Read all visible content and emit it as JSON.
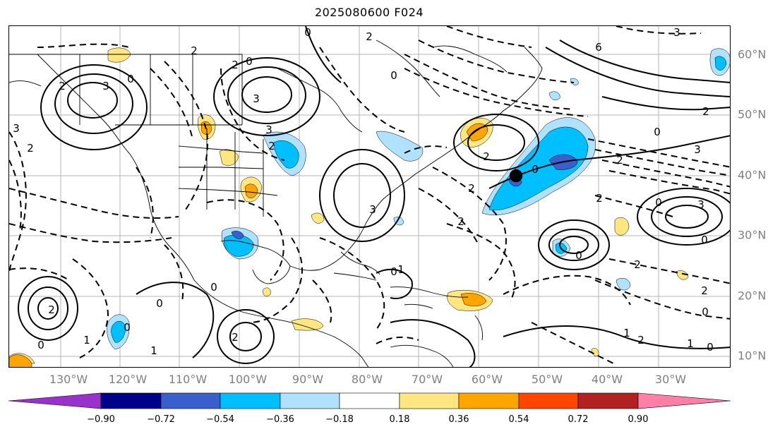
{
  "title": "2025080600 F024",
  "lat_labels": [
    "60°N",
    "50°N",
    "40°N",
    "30°N",
    "20°N",
    "10°N"
  ],
  "lon_labels": [
    "130°W",
    "120°W",
    "110°W",
    "100°W",
    "90°W",
    "80°W",
    "70°W",
    "60°W",
    "50°W",
    "40°W",
    "30°W"
  ],
  "colorbar": {
    "ticks": [
      "−0.90",
      "−0.72",
      "−0.54",
      "−0.36",
      "−0.18",
      "0.18",
      "0.36",
      "0.54",
      "0.72",
      "0.90"
    ],
    "colors": [
      "#9932cc",
      "#00008b",
      "#3a5fcd",
      "#00bfff",
      "#b0e2ff",
      "#ffffff",
      "#ffe680",
      "#ffa500",
      "#ff4500",
      "#b22222",
      "#ff7fa8"
    ]
  },
  "contour_labels": [
    "3",
    "2",
    "0",
    "2",
    "3",
    "3",
    "3",
    "2",
    "2",
    "2",
    "0",
    "0",
    "2",
    "0",
    "3",
    "6",
    "3",
    "2",
    "0",
    "3",
    "2",
    "0",
    "2",
    "2",
    "3",
    "2",
    "2",
    "0",
    "0",
    "0",
    "2",
    "2",
    "1",
    "2",
    "0",
    "1",
    "0",
    "2",
    "0",
    "2",
    "0",
    "1",
    "1",
    "0",
    "0",
    "1",
    "0"
  ],
  "fill_colors": {
    "light_blue": "#b0e2ff",
    "blue": "#00bfff",
    "mid_blue": "#3a5fcd",
    "yellow": "#ffe680",
    "orange": "#ffa500"
  }
}
